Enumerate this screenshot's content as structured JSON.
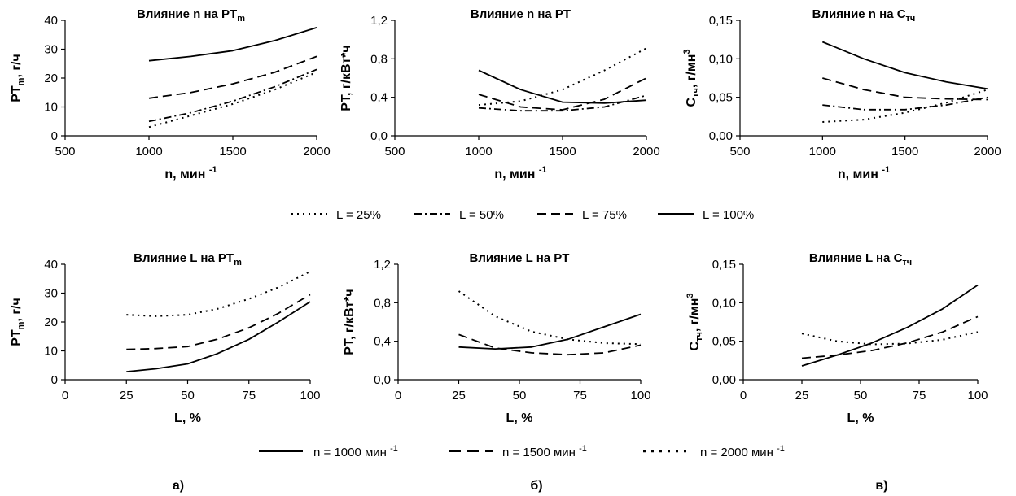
{
  "chart_data": [
    {
      "id": "c1",
      "type": "line",
      "title": {
        "main": "Влияние n на PT",
        "sub": "m"
      },
      "xlabel": {
        "main": "n, мин",
        "sup": "-1"
      },
      "ylabel": {
        "main": "PT",
        "sub": "m",
        "rest": ", г/ч"
      },
      "xlim": [
        500,
        2000
      ],
      "ylim": [
        0,
        40
      ],
      "xticks": [
        "500",
        "1000",
        "1500",
        "2000"
      ],
      "yticks": [
        "0",
        "10",
        "20",
        "30",
        "40"
      ],
      "series": [
        {
          "name": "L = 25%",
          "style": "dotted",
          "x": [
            1000,
            1250,
            1500,
            1750,
            2000
          ],
          "y": [
            3,
            7,
            11,
            16,
            22
          ]
        },
        {
          "name": "L = 50%",
          "style": "dashdot",
          "x": [
            1000,
            1250,
            1500,
            1750,
            2000
          ],
          "y": [
            5,
            8,
            12,
            17,
            23
          ]
        },
        {
          "name": "L = 75%",
          "style": "dashed",
          "x": [
            1000,
            1250,
            1500,
            1750,
            2000
          ],
          "y": [
            13,
            15,
            18,
            22,
            27.5
          ]
        },
        {
          "name": "L = 100%",
          "style": "solid",
          "x": [
            1000,
            1250,
            1500,
            1750,
            2000
          ],
          "y": [
            26,
            27.5,
            29.5,
            33,
            37.5
          ]
        }
      ]
    },
    {
      "id": "c2",
      "type": "line",
      "title": {
        "main": "Влияние n на PT",
        "sub": ""
      },
      "xlabel": {
        "main": "n, мин",
        "sup": "-1"
      },
      "ylabel": {
        "main": "PT",
        "sub": "",
        "rest": ", г/кВт*ч"
      },
      "xlim": [
        500,
        2000
      ],
      "ylim": [
        0,
        1.2
      ],
      "xticks": [
        "500",
        "1000",
        "1500",
        "2000"
      ],
      "yticks": [
        "0,0",
        "0,4",
        "0,8",
        "1,2"
      ],
      "series": [
        {
          "name": "L = 25%",
          "style": "dotted",
          "x": [
            1000,
            1250,
            1500,
            1750,
            2000
          ],
          "y": [
            0.32,
            0.36,
            0.48,
            0.68,
            0.91
          ]
        },
        {
          "name": "L = 50%",
          "style": "dashdot",
          "x": [
            1000,
            1250,
            1500,
            1750,
            2000
          ],
          "y": [
            0.29,
            0.26,
            0.26,
            0.3,
            0.42
          ]
        },
        {
          "name": "L = 75%",
          "style": "dashed",
          "x": [
            1000,
            1250,
            1500,
            1750,
            2000
          ],
          "y": [
            0.43,
            0.3,
            0.27,
            0.38,
            0.6
          ]
        },
        {
          "name": "L = 100%",
          "style": "solid",
          "x": [
            1000,
            1250,
            1500,
            1750,
            2000
          ],
          "y": [
            0.68,
            0.48,
            0.35,
            0.34,
            0.37
          ]
        }
      ]
    },
    {
      "id": "c3",
      "type": "line",
      "title": {
        "main": "Влияние n на C",
        "sub": "тч"
      },
      "xlabel": {
        "main": "n, мин",
        "sup": "-1"
      },
      "ylabel": {
        "main": "C",
        "sub": "тч",
        "rest": ", г/мн",
        "sup": "3"
      },
      "xlim": [
        500,
        2000
      ],
      "ylim": [
        0,
        0.15
      ],
      "xticks": [
        "500",
        "1000",
        "1500",
        "2000"
      ],
      "yticks": [
        "0,00",
        "0,05",
        "0,10",
        "0,15"
      ],
      "series": [
        {
          "name": "L = 25%",
          "style": "dotted",
          "x": [
            1000,
            1250,
            1500,
            1750,
            2000
          ],
          "y": [
            0.018,
            0.021,
            0.03,
            0.043,
            0.06
          ]
        },
        {
          "name": "L = 50%",
          "style": "dashdot",
          "x": [
            1000,
            1250,
            1500,
            1750,
            2000
          ],
          "y": [
            0.04,
            0.034,
            0.034,
            0.04,
            0.05
          ]
        },
        {
          "name": "L = 75%",
          "style": "dashed",
          "x": [
            1000,
            1250,
            1500,
            1750,
            2000
          ],
          "y": [
            0.075,
            0.06,
            0.05,
            0.048,
            0.047
          ]
        },
        {
          "name": "L = 100%",
          "style": "solid",
          "x": [
            1000,
            1250,
            1500,
            1750,
            2000
          ],
          "y": [
            0.122,
            0.1,
            0.082,
            0.07,
            0.061
          ]
        }
      ]
    },
    {
      "id": "c4",
      "type": "line",
      "title": {
        "main": "Влияние L на PT",
        "sub": "m"
      },
      "xlabel": {
        "main": "L, %",
        "sup": ""
      },
      "ylabel": {
        "main": "PT",
        "sub": "m",
        "rest": ", г/ч"
      },
      "xlim": [
        0,
        100
      ],
      "ylim": [
        0,
        40
      ],
      "xticks": [
        "0",
        "25",
        "50",
        "75",
        "100"
      ],
      "yticks": [
        "0",
        "10",
        "20",
        "30",
        "40"
      ],
      "series": [
        {
          "name": "n = 1000 мин -1",
          "style": "solid",
          "x": [
            25,
            37,
            50,
            62,
            75,
            87,
            100
          ],
          "y": [
            2.8,
            3.8,
            5.5,
            9,
            14,
            20,
            27
          ]
        },
        {
          "name": "n = 1500 мин -1",
          "style": "dashed",
          "x": [
            25,
            37,
            50,
            62,
            75,
            87,
            100
          ],
          "y": [
            10.5,
            10.8,
            11.5,
            14,
            18,
            23,
            29.5
          ]
        },
        {
          "name": "n = 2000 мин -1",
          "style": "dotted",
          "x": [
            25,
            37,
            50,
            62,
            75,
            87,
            100
          ],
          "y": [
            22.5,
            22,
            22.5,
            24.5,
            28,
            32,
            37.5
          ]
        }
      ]
    },
    {
      "id": "c5",
      "type": "line",
      "title": {
        "main": "Влияние L на PT",
        "sub": ""
      },
      "xlabel": {
        "main": "L, %",
        "sup": ""
      },
      "ylabel": {
        "main": "PT",
        "sub": "",
        "rest": ", г/кВт*ч"
      },
      "xlim": [
        0,
        100
      ],
      "ylim": [
        0,
        1.2
      ],
      "xticks": [
        "0",
        "25",
        "50",
        "75",
        "100"
      ],
      "yticks": [
        "0,0",
        "0,4",
        "0,8",
        "1,2"
      ],
      "series": [
        {
          "name": "n = 1000 мин -1",
          "style": "solid",
          "x": [
            25,
            40,
            55,
            70,
            85,
            100
          ],
          "y": [
            0.34,
            0.32,
            0.34,
            0.42,
            0.55,
            0.68
          ]
        },
        {
          "name": "n = 1500 мин -1",
          "style": "dashed",
          "x": [
            25,
            40,
            55,
            70,
            85,
            100
          ],
          "y": [
            0.47,
            0.33,
            0.28,
            0.26,
            0.28,
            0.36
          ]
        },
        {
          "name": "n = 2000 мин -1",
          "style": "dotted",
          "x": [
            25,
            40,
            55,
            70,
            85,
            100
          ],
          "y": [
            0.92,
            0.66,
            0.5,
            0.42,
            0.38,
            0.37
          ]
        }
      ]
    },
    {
      "id": "c6",
      "type": "line",
      "title": {
        "main": "Влияние L на C",
        "sub": "тч"
      },
      "xlabel": {
        "main": "L, %",
        "sup": ""
      },
      "ylabel": {
        "main": "C",
        "sub": "тч",
        "rest": ", г/мн",
        "sup": "3"
      },
      "xlim": [
        0,
        100
      ],
      "ylim": [
        0,
        0.15
      ],
      "xticks": [
        "0",
        "25",
        "50",
        "75",
        "100"
      ],
      "yticks": [
        "0,00",
        "0,05",
        "0,10",
        "0,15"
      ],
      "series": [
        {
          "name": "n = 1000 мин -1",
          "style": "solid",
          "x": [
            25,
            40,
            55,
            70,
            85,
            100
          ],
          "y": [
            0.018,
            0.032,
            0.048,
            0.068,
            0.092,
            0.123
          ]
        },
        {
          "name": "n = 1500 мин -1",
          "style": "dashed",
          "x": [
            25,
            40,
            55,
            70,
            85,
            100
          ],
          "y": [
            0.028,
            0.032,
            0.038,
            0.048,
            0.062,
            0.082
          ]
        },
        {
          "name": "n = 2000 мин -1",
          "style": "dotted",
          "x": [
            25,
            40,
            55,
            70,
            85,
            100
          ],
          "y": [
            0.06,
            0.05,
            0.046,
            0.047,
            0.052,
            0.062
          ]
        }
      ]
    }
  ],
  "legend_top": [
    {
      "label": "L = 25%",
      "style": "dotted"
    },
    {
      "label": "L = 50%",
      "style": "dashdot"
    },
    {
      "label": "L = 75%",
      "style": "dashed"
    },
    {
      "label": "L = 100%",
      "style": "solid"
    }
  ],
  "legend_bottom": [
    {
      "label": "n = 1000 мин",
      "sup": "-1",
      "style": "solid"
    },
    {
      "label": "n = 1500 мин",
      "sup": "-1",
      "style": "dashed"
    },
    {
      "label": "n = 2000 мин",
      "sup": "-1",
      "style": "dotted"
    }
  ],
  "panel_labels": [
    "а)",
    "б)",
    "в)"
  ]
}
